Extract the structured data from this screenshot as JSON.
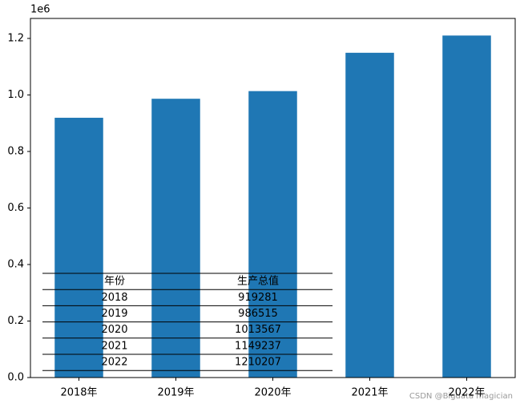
{
  "chart_data": {
    "type": "bar",
    "categories": [
      "2018年",
      "2019年",
      "2020年",
      "2021年",
      "2022年"
    ],
    "values": [
      919281,
      986515,
      1013567,
      1149237,
      1210207
    ],
    "color": "#1f77b4",
    "ylim": [
      0,
      1270717
    ],
    "yticks": [
      {
        "value": 0,
        "label": "0.0"
      },
      {
        "value": 200000,
        "label": "0.2"
      },
      {
        "value": 400000,
        "label": "0.4"
      },
      {
        "value": 600000,
        "label": "0.6"
      },
      {
        "value": 800000,
        "label": "0.8"
      },
      {
        "value": 1000000,
        "label": "1.0"
      },
      {
        "value": 1200000,
        "label": "1.2"
      }
    ],
    "y_offset_label": "1e6",
    "grid": false,
    "table": {
      "columns": [
        "年份",
        "生产总值"
      ],
      "years": [
        "2018",
        "2019",
        "2020",
        "2021",
        "2022"
      ]
    },
    "watermark": "CSDN @Bigdata magician"
  }
}
